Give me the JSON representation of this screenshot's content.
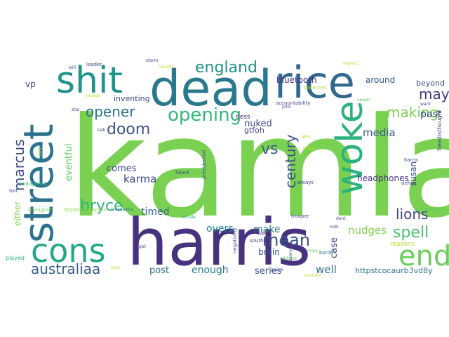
{
  "words": [
    {
      "text": "kamla",
      "color": "#7ad151"
    },
    {
      "text": "harris",
      "color": "#46327e"
    },
    {
      "text": "dead",
      "color": "#2a788e"
    },
    {
      "text": "rice",
      "color": "#31688e"
    },
    {
      "text": "street",
      "color": "#2c728e"
    },
    {
      "text": "shit",
      "color": "#20938c"
    },
    {
      "text": "woke",
      "color": "#2db27d"
    },
    {
      "text": "cons",
      "color": "#22a884"
    },
    {
      "text": "end",
      "color": "#6ccd5a"
    },
    {
      "text": "opening",
      "color": "#35b779"
    },
    {
      "text": "england",
      "color": "#21918c"
    },
    {
      "text": "doom",
      "color": "#3b528b"
    },
    {
      "text": "opener",
      "color": "#2c728e"
    },
    {
      "text": "bryce",
      "color": "#2fb47c"
    },
    {
      "text": "marcus",
      "color": "#3e4989"
    },
    {
      "text": "australiaa",
      "color": "#365c8d"
    },
    {
      "text": "spell",
      "color": "#4ac16d"
    },
    {
      "text": "lions",
      "color": "#414487"
    },
    {
      "text": "mean",
      "color": "#3b528b"
    },
    {
      "text": "making",
      "color": "#7ad151"
    },
    {
      "text": "may",
      "color": "#443983"
    },
    {
      "text": "century",
      "color": "#3b528b"
    },
    {
      "text": "vs",
      "color": "#375a8c"
    },
    {
      "text": "karma",
      "color": "#3e4989"
    },
    {
      "text": "comes",
      "color": "#3f4788"
    },
    {
      "text": "nuked",
      "color": "#404688"
    },
    {
      "text": "overs",
      "color": "#24868e"
    },
    {
      "text": "timed",
      "color": "#31688e"
    },
    {
      "text": "post",
      "color": "#2c728e"
    },
    {
      "text": "enough",
      "color": "#2a788e"
    },
    {
      "text": "series",
      "color": "#3b528b"
    },
    {
      "text": "make",
      "color": "#2a788e"
    },
    {
      "text": "media",
      "color": "#365c8d"
    },
    {
      "text": "past",
      "color": "#3e4989"
    },
    {
      "text": "well",
      "color": "#31688e"
    },
    {
      "text": "brain",
      "color": "#3b528b"
    },
    {
      "text": "nudges",
      "color": "#7fd34e"
    },
    {
      "text": "case",
      "color": "#3f4788"
    },
    {
      "text": "susan",
      "color": "#3e4989"
    },
    {
      "text": "headphones",
      "color": "#46337e"
    },
    {
      "text": "eventful",
      "color": "#5ec962"
    },
    {
      "text": "either",
      "color": "#7ad151"
    },
    {
      "text": "around",
      "color": "#375a8c"
    },
    {
      "text": "bluetooth",
      "color": "#46327e"
    },
    {
      "text": "beyond",
      "color": "#3b528b"
    },
    {
      "text": "vp",
      "color": "#443983"
    },
    {
      "text": "inventing",
      "color": "#3e4989"
    },
    {
      "text": "gtfoh",
      "color": "#414487"
    },
    {
      "text": "ness",
      "color": "#482576"
    },
    {
      "text": "httpstcocaurb3vd8y",
      "color": "#2c728e"
    },
    {
      "text": "httpstcojkfdqriffx",
      "color": "#90d743"
    },
    {
      "text": "immigrant",
      "color": "#7ad151"
    },
    {
      "text": "reasons",
      "color": "#b8de29"
    },
    {
      "text": "border",
      "color": "#2a788e"
    },
    {
      "text": "southern",
      "color": "#46327e"
    },
    {
      "text": "rey",
      "color": "#481f70"
    },
    {
      "text": "trooper",
      "color": "#3e4989"
    },
    {
      "text": "address",
      "color": "#5ec962"
    },
    {
      "text": "played",
      "color": "#2db27d"
    },
    {
      "text": "protagonist",
      "color": "#35b779"
    },
    {
      "text": "ianadastra",
      "color": "#2c728e"
    },
    {
      "text": "female",
      "color": "#27ad81"
    },
    {
      "text": "failed",
      "color": "#3e4989"
    },
    {
      "text": "presidential",
      "color": "#3e4989"
    },
    {
      "text": "negatively",
      "color": "#3b528b"
    },
    {
      "text": "ton",
      "color": "#3b528b"
    },
    {
      "text": "define",
      "color": "#3b528b"
    },
    {
      "text": "consider",
      "color": "#b5de2b"
    },
    {
      "text": "assignment",
      "color": "#5ec962"
    },
    {
      "text": "accountability",
      "color": "#433e85"
    },
    {
      "text": "speeches",
      "color": "#b8de29"
    },
    {
      "text": "john",
      "color": "#3e4989"
    },
    {
      "text": "freedisthought",
      "color": "#3e4989"
    },
    {
      "text": "harris",
      "color": "#3e4989"
    },
    {
      "text": "crisis",
      "color": "#b5de2b"
    },
    {
      "text": "lets",
      "color": "#b5de2b"
    },
    {
      "text": "always",
      "color": "#3e4989"
    },
    {
      "text": "want",
      "color": "#3e4989"
    },
    {
      "text": "newer",
      "color": "#5ec962"
    },
    {
      "text": "neglect",
      "color": "#b5de2b"
    },
    {
      "text": "storm",
      "color": "#3e4989"
    },
    {
      "text": "leader",
      "color": "#3e4989"
    },
    {
      "text": "taught",
      "color": "#b5de2b"
    },
    {
      "text": "star",
      "color": "#3e4989"
    },
    {
      "text": "talk",
      "color": "#3e4989"
    },
    {
      "text": "will",
      "color": "#3e4989"
    },
    {
      "text": "police",
      "color": "#3e4989"
    },
    {
      "text": "got",
      "color": "#3e4989"
    },
    {
      "text": "dont",
      "color": "#3e4989"
    },
    {
      "text": "milk",
      "color": "#3e4989"
    },
    {
      "text": "fcon",
      "color": "#b5de2b"
    },
    {
      "text": "every",
      "color": "#3e4989"
    },
    {
      "text": "mars",
      "color": "#5ec962"
    },
    {
      "text": "lord",
      "color": "#b5de2b"
    },
    {
      "text": "voyage",
      "color": "#b5de2b"
    }
  ]
}
